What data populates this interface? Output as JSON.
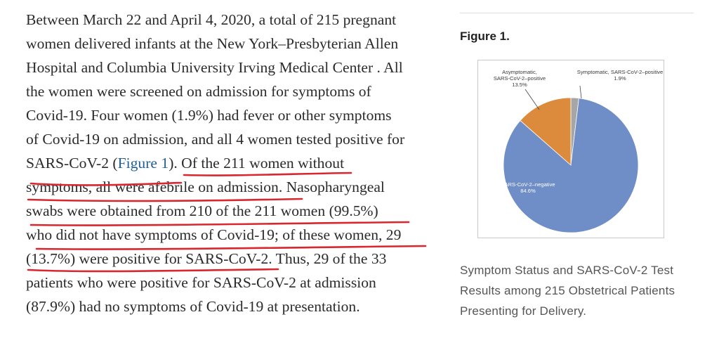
{
  "article": {
    "lines": [
      "Between March 22 and April 4, 2020, a total of 215 pregnant",
      "women delivered infants at the New York–Presbyterian Allen",
      "Hospital and Columbia University Irving Medical Center . All",
      "the women were screened on admission for symptoms of",
      "Covid-19. Four women (1.9%) had fever or other symptoms",
      "of Covid-19 on admission, and all 4 women tested positive for",
      "SARS-CoV-2 (",
      "Figure 1",
      "). Of the 211 women without",
      "symptoms, all were afebrile on admission. Nasopharyngeal",
      "swabs were obtained from 210 of the 211 women (99.5%)",
      "who did not have symptoms of Covid-19; of these women, 29",
      "(13.7%) were positive for SARS-CoV-2. Thus, 29 of the 33",
      "patients who were positive for SARS-CoV-2 at admission",
      "(87.9%) had no symptoms of Covid-19 at presentation."
    ]
  },
  "figure": {
    "title": "Figure 1.",
    "caption_lines": [
      "Symptom Status and SARS-CoV-2 Test",
      "Results among 215 Obstetrical Patients",
      "Presenting for Delivery."
    ]
  },
  "chart_data": {
    "type": "pie",
    "title": "",
    "slices": [
      {
        "label": "SARS-CoV-2–negative",
        "value": 84.6,
        "value_label": "84.6%",
        "color": "#6f8dc6"
      },
      {
        "label": "Asymptomatic, SARS-CoV-2–positive",
        "label_line1": "Asymptomatic,",
        "label_line2": "SARS-CoV-2–positive",
        "value": 13.5,
        "value_label": "13.5%",
        "color": "#dc8b3c"
      },
      {
        "label": "Symptomatic, SARS-CoV-2–positive",
        "value": 1.9,
        "value_label": "1.9%",
        "color": "#a6a6a6"
      }
    ]
  },
  "colors": {
    "highlight": "#d8272f",
    "link": "#1f5f9a",
    "text": "#2b2b2b"
  }
}
